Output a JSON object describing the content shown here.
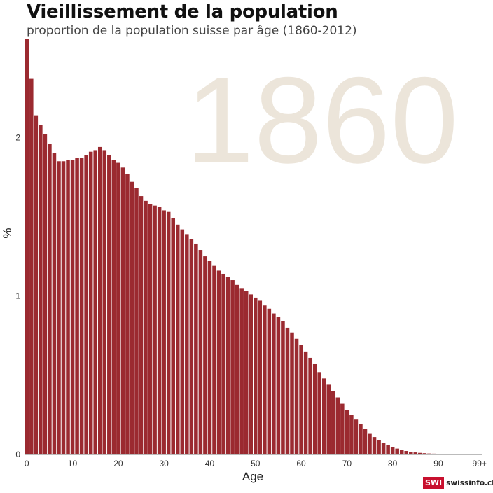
{
  "header": {
    "title": "Vieillissement de la population",
    "subtitle": "proportion de la population suisse par âge (1860-2012)"
  },
  "logo": {
    "box": "SWI",
    "text": "swissinfo.ch",
    "color": "#c8102e"
  },
  "chart_data": {
    "type": "bar",
    "year_watermark": "1860",
    "xlabel": "Age",
    "ylabel": "%",
    "ylim": [
      0,
      2.62
    ],
    "xlim": [
      0,
      99
    ],
    "x_ticks": [
      "0",
      "10",
      "20",
      "30",
      "40",
      "50",
      "60",
      "70",
      "80",
      "90",
      "99+"
    ],
    "x_tick_values": [
      0,
      10,
      20,
      30,
      40,
      50,
      60,
      70,
      80,
      90,
      99
    ],
    "y_ticks": [
      "0",
      "1",
      "2"
    ],
    "y_tick_values": [
      0,
      1,
      2
    ],
    "grid": false,
    "colors": {
      "bar": "#9b2a30",
      "watermark": "#ece5da"
    },
    "categories": [
      0,
      1,
      2,
      3,
      4,
      5,
      6,
      7,
      8,
      9,
      10,
      11,
      12,
      13,
      14,
      15,
      16,
      17,
      18,
      19,
      20,
      21,
      22,
      23,
      24,
      25,
      26,
      27,
      28,
      29,
      30,
      31,
      32,
      33,
      34,
      35,
      36,
      37,
      38,
      39,
      40,
      41,
      42,
      43,
      44,
      45,
      46,
      47,
      48,
      49,
      50,
      51,
      52,
      53,
      54,
      55,
      56,
      57,
      58,
      59,
      60,
      61,
      62,
      63,
      64,
      65,
      66,
      67,
      68,
      69,
      70,
      71,
      72,
      73,
      74,
      75,
      76,
      77,
      78,
      79,
      80,
      81,
      82,
      83,
      84,
      85,
      86,
      87,
      88,
      89,
      90,
      91,
      92,
      93,
      94,
      95,
      96,
      97,
      98,
      99
    ],
    "values": [
      2.62,
      2.37,
      2.14,
      2.08,
      2.02,
      1.96,
      1.9,
      1.85,
      1.85,
      1.86,
      1.86,
      1.87,
      1.87,
      1.89,
      1.91,
      1.92,
      1.94,
      1.92,
      1.89,
      1.86,
      1.84,
      1.81,
      1.77,
      1.72,
      1.68,
      1.63,
      1.6,
      1.58,
      1.57,
      1.56,
      1.54,
      1.53,
      1.49,
      1.45,
      1.42,
      1.39,
      1.36,
      1.33,
      1.29,
      1.25,
      1.22,
      1.19,
      1.16,
      1.14,
      1.12,
      1.1,
      1.07,
      1.05,
      1.03,
      1.01,
      0.99,
      0.97,
      0.94,
      0.92,
      0.89,
      0.87,
      0.84,
      0.8,
      0.77,
      0.73,
      0.69,
      0.65,
      0.61,
      0.57,
      0.52,
      0.48,
      0.44,
      0.4,
      0.36,
      0.32,
      0.28,
      0.25,
      0.22,
      0.19,
      0.16,
      0.13,
      0.11,
      0.09,
      0.075,
      0.06,
      0.047,
      0.037,
      0.029,
      0.022,
      0.017,
      0.013,
      0.01,
      0.008,
      0.006,
      0.005,
      0.004,
      0.003,
      0.002,
      0.0015,
      0.001,
      0.001,
      0.0008,
      0.0005,
      0.0003,
      0.0002
    ]
  }
}
